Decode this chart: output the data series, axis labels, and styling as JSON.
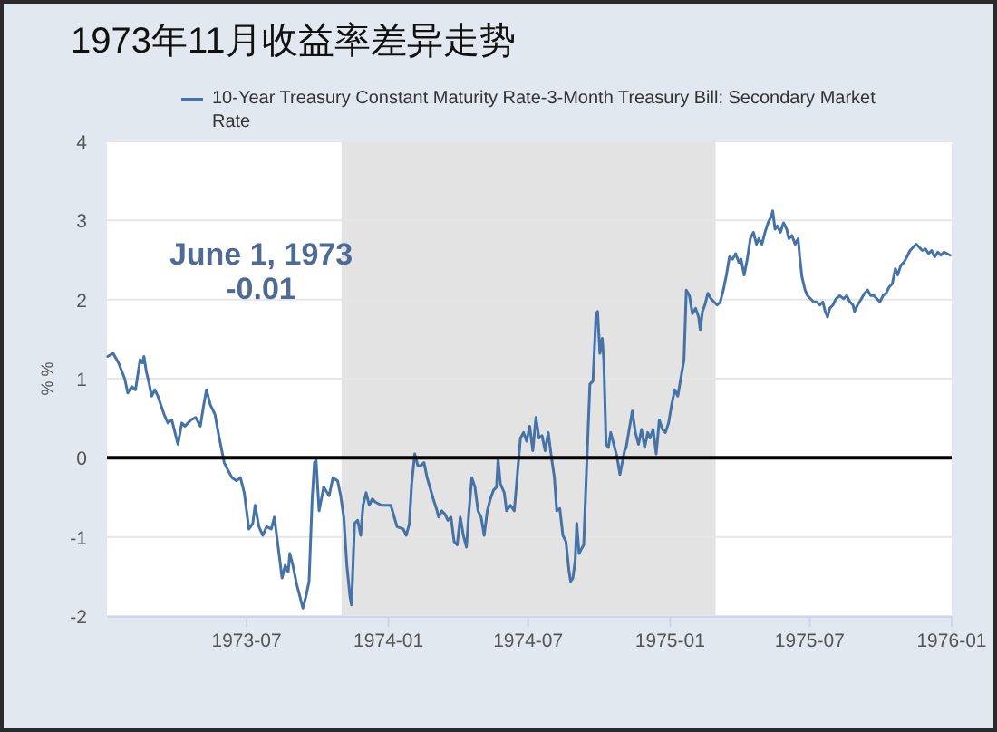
{
  "chart_data": {
    "type": "line",
    "title": "1973年11月收益率差异走势",
    "ylabel": "% %",
    "x": [
      "1973-01-02",
      "1973-01-09",
      "1973-01-16",
      "1973-01-24",
      "1973-01-28",
      "1973-02-02",
      "1973-02-07",
      "1973-02-13",
      "1973-02-16",
      "1973-02-18",
      "1973-02-21",
      "1973-02-24",
      "1973-02-28",
      "1973-03-04",
      "1973-03-08",
      "1973-03-16",
      "1973-03-21",
      "1973-03-26",
      "1973-04-03",
      "1973-04-08",
      "1973-04-12",
      "1973-04-20",
      "1973-04-26",
      "1973-05-02",
      "1973-05-07",
      "1973-05-10",
      "1973-05-15",
      "1973-05-21",
      "1973-05-26",
      "1973-06-01",
      "1973-06-02",
      "1973-06-06",
      "1973-06-12",
      "1973-06-18",
      "1973-06-23",
      "1973-06-28",
      "1973-07-04",
      "1973-07-09",
      "1973-07-12",
      "1973-07-17",
      "1973-07-22",
      "1973-07-27",
      "1973-08-02",
      "1973-08-06",
      "1973-08-12",
      "1973-08-16",
      "1973-08-20",
      "1973-08-24",
      "1973-08-26",
      "1973-08-30",
      "1973-09-04",
      "1973-09-08",
      "1973-09-12",
      "1973-09-16",
      "1973-09-20",
      "1973-09-24",
      "1973-09-27",
      "1973-09-29",
      "1973-10-03",
      "1973-10-06",
      "1973-10-09",
      "1973-10-16",
      "1973-10-21",
      "1973-10-27",
      "1973-10-31",
      "1973-11-04",
      "1973-11-08",
      "1973-11-12",
      "1973-11-14",
      "1973-11-18",
      "1973-11-22",
      "1973-11-26",
      "1973-11-29",
      "1973-12-03",
      "1973-12-07",
      "1973-12-11",
      "1973-12-15",
      "1973-12-23",
      "1974-01-04",
      "1974-01-12",
      "1974-01-20",
      "1974-01-24",
      "1974-01-28",
      "1974-01-31",
      "1974-02-04",
      "1974-02-08",
      "1974-02-12",
      "1974-02-16",
      "1974-02-20",
      "1974-02-28",
      "1974-03-04",
      "1974-03-07",
      "1974-03-11",
      "1974-03-15",
      "1974-03-19",
      "1974-03-23",
      "1974-03-27",
      "1974-03-31",
      "1974-04-04",
      "1974-04-08",
      "1974-04-12",
      "1974-04-15",
      "1974-04-19",
      "1974-04-23",
      "1974-04-27",
      "1974-05-01",
      "1974-05-05",
      "1974-05-09",
      "1974-05-13",
      "1974-05-17",
      "1974-05-21",
      "1974-05-23",
      "1974-05-26",
      "1974-05-31",
      "1974-06-03",
      "1974-06-08",
      "1974-06-13",
      "1974-06-17",
      "1974-06-21",
      "1974-06-25",
      "1974-06-29",
      "1974-07-03",
      "1974-07-07",
      "1974-07-11",
      "1974-07-15",
      "1974-07-19",
      "1974-07-23",
      "1974-07-27",
      "1974-07-31",
      "1974-08-04",
      "1974-08-07",
      "1974-08-11",
      "1974-08-15",
      "1974-08-19",
      "1974-08-23",
      "1974-08-25",
      "1974-08-28",
      "1974-08-31",
      "1974-09-02",
      "1974-09-05",
      "1974-09-07",
      "1974-09-11",
      "1974-09-15",
      "1974-09-19",
      "1974-09-23",
      "1974-09-27",
      "1974-09-29",
      "1974-10-02",
      "1974-10-05",
      "1974-10-07",
      "1974-10-10",
      "1974-10-13",
      "1974-10-16",
      "1974-10-20",
      "1974-10-24",
      "1974-10-28",
      "1974-10-31",
      "1974-11-03",
      "1974-11-05",
      "1974-11-13",
      "1974-11-17",
      "1974-11-21",
      "1974-11-25",
      "1974-11-29",
      "1974-12-03",
      "1974-12-06",
      "1974-12-10",
      "1974-12-14",
      "1974-12-18",
      "1974-12-22",
      "1974-12-26",
      "1974-12-30",
      "1975-01-03",
      "1975-01-07",
      "1975-01-11",
      "1975-01-15",
      "1975-01-19",
      "1975-01-22",
      "1975-01-26",
      "1975-01-30",
      "1975-02-03",
      "1975-02-07",
      "1975-02-09",
      "1975-02-12",
      "1975-02-15",
      "1975-02-19",
      "1975-02-23",
      "1975-02-27",
      "1975-03-03",
      "1975-03-07",
      "1975-03-11",
      "1975-03-15",
      "1975-03-19",
      "1975-03-23",
      "1975-03-27",
      "1975-03-31",
      "1975-04-03",
      "1975-04-07",
      "1975-04-11",
      "1975-04-15",
      "1975-04-19",
      "1975-04-23",
      "1975-04-26",
      "1975-04-30",
      "1975-05-04",
      "1975-05-08",
      "1975-05-12",
      "1975-05-14",
      "1975-05-17",
      "1975-05-20",
      "1975-05-24",
      "1975-05-28",
      "1975-06-01",
      "1975-06-04",
      "1975-06-08",
      "1975-06-12",
      "1975-06-16",
      "1975-06-18",
      "1975-06-21",
      "1975-06-25",
      "1975-06-28",
      "1975-07-02",
      "1975-07-06",
      "1975-07-10",
      "1975-07-14",
      "1975-07-18",
      "1975-07-21",
      "1975-07-24",
      "1975-07-27",
      "1975-07-31",
      "1975-08-04",
      "1975-08-09",
      "1975-08-14",
      "1975-08-18",
      "1975-08-22",
      "1975-08-26",
      "1975-08-28",
      "1975-09-01",
      "1975-09-06",
      "1975-09-10",
      "1975-09-14",
      "1975-09-18",
      "1975-09-22",
      "1975-09-26",
      "1975-09-30",
      "1975-10-04",
      "1975-10-08",
      "1975-10-12",
      "1975-10-16",
      "1975-10-20",
      "1975-10-23",
      "1975-10-27",
      "1975-10-31",
      "1975-11-04",
      "1975-11-08",
      "1975-11-12",
      "1975-11-16",
      "1975-11-20",
      "1975-11-24",
      "1975-11-28",
      "1975-12-02",
      "1975-12-06",
      "1975-12-10",
      "1975-12-14",
      "1975-12-18",
      "1975-12-22",
      "1975-12-26",
      "1975-12-30"
    ],
    "series": [
      {
        "name": "10-Year Treasury Constant Maturity Rate-3-Month Treasury Bill: Secondary Market Rate",
        "color": "#4572a7",
        "values": [
          1.28,
          1.32,
          1.2,
          1.0,
          0.82,
          0.9,
          0.86,
          1.24,
          1.2,
          1.28,
          1.09,
          0.97,
          0.78,
          0.86,
          0.78,
          0.55,
          0.44,
          0.48,
          0.17,
          0.44,
          0.4,
          0.48,
          0.51,
          0.4,
          0.7,
          0.86,
          0.67,
          0.55,
          0.28,
          -0.01,
          -0.06,
          -0.14,
          -0.25,
          -0.29,
          -0.25,
          -0.44,
          -0.9,
          -0.83,
          -0.6,
          -0.87,
          -0.98,
          -0.87,
          -0.9,
          -0.75,
          -1.21,
          -1.52,
          -1.36,
          -1.44,
          -1.21,
          -1.36,
          -1.6,
          -1.75,
          -1.9,
          -1.75,
          -1.56,
          -0.52,
          -0.06,
          -0.02,
          -0.67,
          -0.52,
          -0.37,
          -0.48,
          -0.25,
          -0.29,
          -0.48,
          -0.75,
          -1.36,
          -1.75,
          -1.86,
          -0.83,
          -0.79,
          -0.98,
          -0.6,
          -0.44,
          -0.6,
          -0.52,
          -0.56,
          -0.6,
          -0.6,
          -0.87,
          -0.9,
          -0.98,
          -0.83,
          -0.33,
          0.05,
          -0.1,
          -0.1,
          -0.06,
          -0.25,
          -0.52,
          -0.64,
          -0.75,
          -0.67,
          -0.71,
          -0.79,
          -0.75,
          -1.06,
          -1.1,
          -0.75,
          -0.98,
          -1.13,
          -0.71,
          -0.25,
          -0.37,
          -0.67,
          -0.75,
          -0.98,
          -0.67,
          -0.52,
          -0.41,
          -0.37,
          -0.02,
          -0.33,
          -0.44,
          -0.67,
          -0.6,
          -0.67,
          -0.21,
          0.25,
          0.32,
          0.21,
          0.4,
          0.09,
          0.51,
          0.25,
          0.28,
          0.09,
          0.32,
          0.02,
          -0.25,
          -0.67,
          -0.64,
          -0.98,
          -1.06,
          -1.44,
          -1.56,
          -1.52,
          -1.29,
          -0.83,
          -1.21,
          -1.17,
          -1.1,
          -0.06,
          0.93,
          0.97,
          1.82,
          1.85,
          1.32,
          1.51,
          1.24,
          0.17,
          0.13,
          0.32,
          0.17,
          0.02,
          -0.21,
          -0.06,
          0.09,
          0.13,
          0.59,
          0.32,
          0.17,
          0.36,
          0.13,
          0.32,
          0.25,
          0.36,
          0.05,
          0.48,
          0.36,
          0.32,
          0.44,
          0.67,
          0.86,
          0.78,
          1.01,
          1.24,
          2.12,
          2.05,
          1.82,
          1.89,
          1.78,
          1.62,
          1.85,
          1.93,
          2.08,
          2.01,
          1.97,
          1.93,
          1.97,
          2.12,
          2.31,
          2.54,
          2.51,
          2.58,
          2.47,
          2.51,
          2.31,
          2.51,
          2.77,
          2.85,
          2.7,
          2.77,
          2.7,
          2.85,
          2.97,
          3.05,
          3.12,
          2.89,
          2.93,
          2.85,
          2.97,
          2.89,
          2.77,
          2.81,
          2.7,
          2.77,
          2.54,
          2.28,
          2.12,
          2.05,
          2.01,
          1.97,
          1.97,
          1.93,
          1.97,
          1.85,
          1.78,
          1.89,
          1.93,
          2.01,
          2.05,
          2.01,
          2.05,
          1.97,
          1.93,
          1.85,
          1.93,
          2.01,
          2.08,
          2.12,
          2.05,
          2.05,
          2.01,
          1.97,
          2.05,
          2.08,
          2.16,
          2.2,
          2.39,
          2.31,
          2.43,
          2.47,
          2.54,
          2.62,
          2.66,
          2.7,
          2.66,
          2.62,
          2.64,
          2.58,
          2.62,
          2.54,
          2.6,
          2.56,
          2.6,
          2.58,
          2.56
        ]
      }
    ],
    "xlim": [
      "1973-01-01",
      "1976-01-01"
    ],
    "xticks": [
      "1973-07",
      "1974-01",
      "1974-07",
      "1975-01",
      "1975-07",
      "1976-01"
    ],
    "ylim": [
      -2,
      4
    ],
    "yticks": [
      -2,
      -1,
      0,
      1,
      2,
      3,
      4
    ],
    "grid": "y",
    "legend": "top",
    "bands": [
      {
        "axis": "x",
        "from": "1973-11-01",
        "to": "1975-03-01",
        "color": "#e3e3e3"
      }
    ],
    "ref_lines": [
      {
        "axis": "y",
        "value": 0,
        "color": "#000000"
      }
    ],
    "annotations": [
      "June 1, 1973",
      "-0.01"
    ]
  }
}
